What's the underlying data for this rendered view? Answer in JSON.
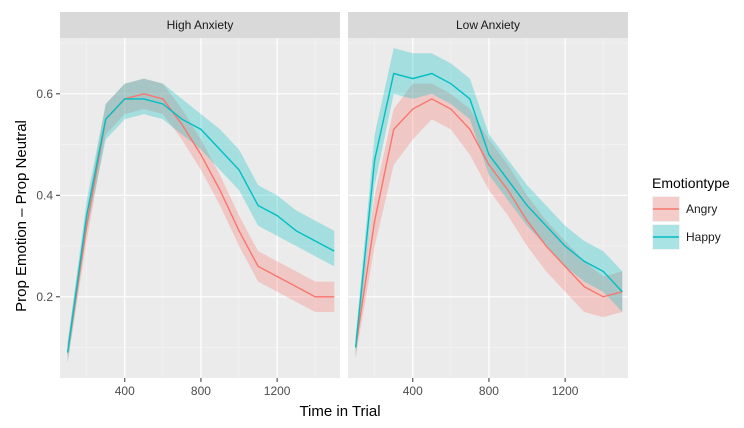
{
  "chart_data": {
    "type": "line",
    "xlabel": "Time in Trial",
    "ylabel": "Prop Emotion – Prop Neutral",
    "xlim": [
      60,
      1530
    ],
    "ylim": [
      0.04,
      0.71
    ],
    "x_ticks": [
      400,
      800,
      1200
    ],
    "x_tick_labels": [
      "400",
      "800",
      "1200"
    ],
    "y_ticks": [
      0.2,
      0.4,
      0.6
    ],
    "y_tick_labels": [
      "0.2",
      "0.4",
      "0.6"
    ],
    "x_minor_ticks": [
      200,
      600,
      1000,
      1400
    ],
    "y_minor_ticks": [
      0.1,
      0.3,
      0.5,
      0.7
    ],
    "grid": true,
    "legend": {
      "title": "Emotiontype",
      "position": "right",
      "entries": [
        "Angry",
        "Happy"
      ]
    },
    "x": [
      100,
      200,
      300,
      400,
      500,
      600,
      700,
      800,
      900,
      1000,
      1100,
      1200,
      1300,
      1400,
      1500
    ],
    "panels": [
      {
        "title": "High Anxiety",
        "series": [
          {
            "name": "Angry",
            "color": "#F8766D",
            "values": [
              0.09,
              0.34,
              0.55,
              0.59,
              0.6,
              0.59,
              0.54,
              0.48,
              0.41,
              0.33,
              0.26,
              0.24,
              0.22,
              0.2,
              0.2
            ],
            "lower": [
              0.07,
              0.31,
              0.52,
              0.56,
              0.57,
              0.56,
              0.51,
              0.45,
              0.38,
              0.3,
              0.23,
              0.21,
              0.19,
              0.17,
              0.17
            ],
            "upper": [
              0.11,
              0.37,
              0.58,
              0.62,
              0.63,
              0.62,
              0.57,
              0.51,
              0.44,
              0.36,
              0.29,
              0.27,
              0.25,
              0.23,
              0.23
            ]
          },
          {
            "name": "Happy",
            "color": "#00BFC4",
            "values": [
              0.09,
              0.36,
              0.55,
              0.59,
              0.59,
              0.58,
              0.55,
              0.53,
              0.49,
              0.45,
              0.38,
              0.36,
              0.33,
              0.31,
              0.29
            ],
            "lower": [
              0.07,
              0.33,
              0.51,
              0.55,
              0.56,
              0.55,
              0.52,
              0.49,
              0.45,
              0.41,
              0.34,
              0.32,
              0.3,
              0.28,
              0.26
            ],
            "upper": [
              0.11,
              0.39,
              0.58,
              0.62,
              0.63,
              0.62,
              0.59,
              0.56,
              0.53,
              0.49,
              0.42,
              0.4,
              0.37,
              0.35,
              0.33
            ]
          }
        ]
      },
      {
        "title": "Low Anxiety",
        "series": [
          {
            "name": "Angry",
            "color": "#F8766D",
            "values": [
              0.1,
              0.35,
              0.53,
              0.57,
              0.59,
              0.57,
              0.53,
              0.46,
              0.41,
              0.35,
              0.3,
              0.26,
              0.22,
              0.2,
              0.21
            ],
            "lower": [
              0.08,
              0.3,
              0.46,
              0.51,
              0.55,
              0.53,
              0.48,
              0.41,
              0.36,
              0.3,
              0.25,
              0.21,
              0.17,
              0.16,
              0.17
            ],
            "upper": [
              0.12,
              0.4,
              0.57,
              0.62,
              0.62,
              0.6,
              0.57,
              0.51,
              0.46,
              0.4,
              0.35,
              0.31,
              0.27,
              0.24,
              0.25
            ]
          },
          {
            "name": "Happy",
            "color": "#00BFC4",
            "values": [
              0.1,
              0.47,
              0.64,
              0.63,
              0.64,
              0.62,
              0.59,
              0.48,
              0.43,
              0.38,
              0.34,
              0.3,
              0.27,
              0.25,
              0.21
            ],
            "lower": [
              0.08,
              0.42,
              0.6,
              0.59,
              0.6,
              0.58,
              0.55,
              0.44,
              0.39,
              0.34,
              0.3,
              0.26,
              0.23,
              0.21,
              0.17
            ],
            "upper": [
              0.12,
              0.52,
              0.69,
              0.68,
              0.68,
              0.66,
              0.63,
              0.52,
              0.47,
              0.42,
              0.38,
              0.34,
              0.31,
              0.29,
              0.25
            ]
          }
        ]
      }
    ]
  }
}
